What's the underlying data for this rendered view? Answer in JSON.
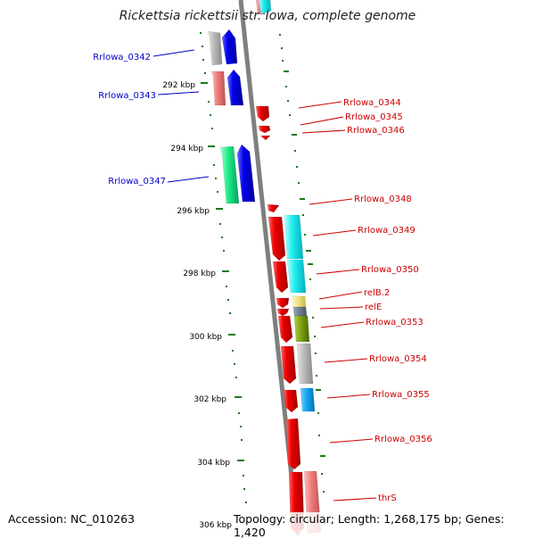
{
  "title": "Rickettsia rickettsii str. Iowa, complete genome",
  "accession": "Accession: NC_010263",
  "summary": "Topology: circular; Length: 1,268,175 bp; Genes: 1,420",
  "colors": {
    "backbone": "#7f7f7f",
    "tick": "#1a7a1a",
    "left_label": "#0000cc",
    "right_label": "#cc0000"
  },
  "ticks": [
    {
      "label": "292 kbp"
    },
    {
      "label": "294 kbp"
    },
    {
      "label": "296 kbp"
    },
    {
      "label": "298 kbp"
    },
    {
      "label": "300 kbp"
    },
    {
      "label": "302 kbp"
    },
    {
      "label": "304 kbp"
    },
    {
      "label": "306 kbp"
    }
  ],
  "left_labels": [
    "Rrlowa_0342",
    "Rrlowa_0343",
    "Rrlowa_0347"
  ],
  "right_labels": [
    "Rrlowa_0344",
    "Rrlowa_0345",
    "Rrlowa_0346",
    "Rrlowa_0348",
    "Rrlowa_0349",
    "Rrlowa_0350",
    "relB.2",
    "relE",
    "Rrlowa_0353",
    "Rrlowa_0354",
    "Rrlowa_0355",
    "Rrlowa_0356",
    "thrS"
  ]
}
